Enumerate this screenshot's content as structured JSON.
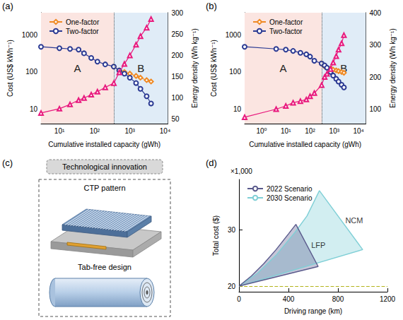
{
  "chart_data": [
    {
      "type": "line",
      "title": "(a)",
      "xlabel": "Cumulative installed capacity (gWh)",
      "ylabel": "Cost (US$ kWh⁻¹)",
      "y2label": "Energy density (Wh kg⁻¹)",
      "log": true,
      "xlim": [
        3,
        12000
      ],
      "xticks": [
        {
          "value": 10,
          "label": "10¹"
        },
        {
          "value": 100,
          "label": "10²"
        },
        {
          "value": 1000,
          "label": "10³"
        },
        {
          "value": 10000,
          "label": "10⁴"
        }
      ],
      "ylim": [
        4,
        4000
      ],
      "yticks": [
        10,
        100,
        1000
      ],
      "y2lim": [
        40,
        300
      ],
      "y2ticks": [
        50,
        100,
        150,
        200,
        250,
        300
      ],
      "grid": false,
      "legend": "upper left",
      "regions": [
        {
          "label": "A",
          "from": 3,
          "to": 350,
          "color": "#fbe5e1"
        },
        {
          "label": "B",
          "from": 350,
          "to": 12000,
          "color": "#e0ecf7"
        }
      ],
      "series": [
        {
          "name": "One-factor",
          "color": "#f08a24",
          "marker": "diamond",
          "x": [
            350,
            500,
            700,
            1000,
            1500,
            2000,
            3000,
            4000
          ],
          "values": [
            140,
            110,
            100,
            90,
            78,
            70,
            60,
            55
          ]
        },
        {
          "name": "Two-factor",
          "color": "#2b3a93",
          "marker": "circle",
          "x": [
            3,
            10,
            20,
            35,
            50,
            80,
            120,
            200,
            350,
            500,
            700,
            1000,
            1500,
            2000,
            3000,
            4000
          ],
          "values": [
            480,
            440,
            420,
            400,
            320,
            240,
            190,
            160,
            140,
            110,
            90,
            70,
            50,
            35,
            22,
            14
          ]
        },
        {
          "color": "#e8197d",
          "marker": "triangle",
          "axis": "y2",
          "x": [
            3,
            10,
            20,
            35,
            50,
            80,
            120,
            200,
            350,
            500,
            700,
            1000,
            1500,
            2000,
            3000,
            4000
          ],
          "values": [
            65,
            75,
            85,
            95,
            100,
            108,
            115,
            125,
            135,
            160,
            180,
            200,
            225,
            245,
            265,
            285
          ]
        }
      ]
    },
    {
      "type": "line",
      "title": "(b)",
      "xlabel": "Cumulative installed capacity (gWh)",
      "ylabel": "Cost (US$ kWh⁻¹)",
      "y2label": "Energy density (Wh kg⁻¹)",
      "log": true,
      "xlim": [
        0.2,
        20000
      ],
      "xticks": [
        {
          "value": 1,
          "label": "10⁰"
        },
        {
          "value": 10,
          "label": "10¹"
        },
        {
          "value": 100,
          "label": "10²"
        },
        {
          "value": 1000,
          "label": "10³"
        },
        {
          "value": 10000,
          "label": "10⁴"
        }
      ],
      "ylim": [
        4,
        4000
      ],
      "yticks": [
        10,
        100,
        1000
      ],
      "y2lim": [
        55,
        400
      ],
      "y2ticks": [
        100,
        200,
        300,
        400
      ],
      "grid": false,
      "legend": "upper left",
      "regions": [
        {
          "label": "A",
          "from": 0.2,
          "to": 300,
          "color": "#fbe5e1"
        },
        {
          "label": "B",
          "from": 300,
          "to": 20000,
          "color": "#e0ecf7"
        }
      ],
      "series": [
        {
          "name": "One-factor",
          "color": "#f08a24",
          "marker": "diamond",
          "x": [
            300,
            400,
            500,
            700,
            900,
            1200,
            1500,
            2000,
            2500
          ],
          "values": [
            170,
            140,
            130,
            125,
            115,
            110,
            105,
            100,
            95
          ]
        },
        {
          "name": "Two-factor",
          "color": "#2b3a93",
          "marker": "circle",
          "x": [
            0.2,
            4,
            10,
            20,
            40,
            70,
            100,
            150,
            300,
            400,
            500,
            700,
            900,
            1200,
            1500,
            2000,
            2500
          ],
          "values": [
            480,
            420,
            400,
            370,
            330,
            300,
            260,
            200,
            170,
            150,
            130,
            100,
            80,
            65,
            55,
            45,
            38
          ]
        },
        {
          "color": "#e8197d",
          "marker": "triangle",
          "axis": "y2",
          "x": [
            0.2,
            4,
            10,
            20,
            40,
            70,
            100,
            150,
            300,
            400,
            500,
            700,
            900,
            1200,
            1500,
            2000,
            2500
          ],
          "values": [
            75,
            100,
            110,
            120,
            125,
            130,
            140,
            150,
            175,
            200,
            210,
            225,
            245,
            265,
            285,
            305,
            330
          ]
        }
      ]
    },
    {
      "type": "area",
      "title": "(d)",
      "xlabel": "Driving range (km)",
      "ylabel": "Total cost ($)",
      "axis_note": "×1,000",
      "xlim": [
        0,
        1200
      ],
      "xticks": [
        0,
        400,
        800,
        1200
      ],
      "ylim": [
        19,
        39
      ],
      "yticks": [
        20,
        30
      ],
      "grid": false,
      "legend": "upper left",
      "reference_lines": [
        {
          "value": 20,
          "color": "#b3b31a",
          "line_style": "dashed"
        }
      ],
      "series": [
        {
          "name": "2022 Scenario",
          "color": "#5a5a8c",
          "line_style": "solid",
          "annotation": "LFP",
          "x": [
            0,
            100,
            200,
            300,
            400,
            460,
            640,
            0
          ],
          "values": [
            20,
            21.8,
            24,
            26.5,
            29.3,
            31,
            23.5,
            20
          ]
        },
        {
          "name": "2030 Scenario",
          "color": "#7fcfd6",
          "line_style": "solid",
          "annotation": "NCM",
          "x": [
            0,
            150,
            300,
            450,
            550,
            650,
            1000,
            0
          ],
          "values": [
            20,
            22.3,
            25.5,
            29.5,
            32.5,
            37,
            26.5,
            20
          ]
        }
      ]
    }
  ],
  "diagram": {
    "title": "(c)",
    "header": "Technological innovation",
    "items": [
      "CTP pattern",
      "Tab-free design"
    ]
  }
}
